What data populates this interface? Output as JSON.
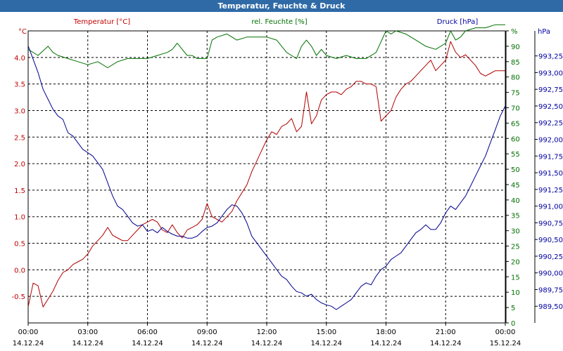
{
  "chart_data": {
    "type": "line",
    "title": "Temperatur, Feuchte & Druck",
    "x_ticks": [
      "00:00",
      "03:00",
      "06:00",
      "09:00",
      "12:00",
      "15:00",
      "18:00",
      "21:00",
      "00:00"
    ],
    "x_dates": [
      "14.12.24",
      "14.12.24",
      "14.12.24",
      "14.12.24",
      "14.12.24",
      "14.12.24",
      "14.12.24",
      "14.12.24",
      "15.12.24"
    ],
    "xlim": [
      0,
      24
    ],
    "grid": true,
    "axes": {
      "temperature": {
        "label": "Temperatur [°C]",
        "unit": "°C",
        "ylim": [
          -1.0,
          4.5
        ],
        "ticks": [
          "4.0",
          "3.5",
          "3.0",
          "2.5",
          "2.0",
          "1.5",
          "1.0",
          "0.5",
          "0.0",
          "-0.5"
        ],
        "color": "#c00000"
      },
      "humidity": {
        "label": "rel. Feuchte [%]",
        "unit": "%",
        "ylim": [
          0,
          95
        ],
        "ticks": [
          "95",
          "90",
          "85",
          "80",
          "75",
          "70",
          "65",
          "60",
          "55",
          "50",
          "45",
          "40",
          "35",
          "30",
          "25",
          "20",
          "15",
          "10",
          "5",
          "0"
        ],
        "color": "#007000"
      },
      "pressure": {
        "label": "Druck [hPa]",
        "unit": "hPa",
        "ylim": [
          989.25,
          993.625
        ],
        "ticks": [
          "993,25",
          "993,00",
          "992,75",
          "992,50",
          "992,25",
          "992,00",
          "991,75",
          "991,50",
          "991,25",
          "991,00",
          "990,75",
          "990,50",
          "990,25",
          "990,00",
          "989,75",
          "989,50"
        ],
        "color": "#0000a0"
      }
    },
    "series": [
      {
        "name": "Temperatur [°C]",
        "axis": "temperature",
        "color": "#b00000",
        "x": [
          0,
          0.25,
          0.5,
          0.75,
          1.0,
          1.25,
          1.5,
          1.75,
          2.0,
          2.25,
          2.5,
          2.75,
          3.0,
          3.25,
          3.5,
          3.75,
          4.0,
          4.25,
          4.5,
          4.75,
          5.0,
          5.25,
          5.5,
          5.75,
          6.0,
          6.25,
          6.5,
          6.75,
          7.0,
          7.25,
          7.5,
          7.75,
          8.0,
          8.25,
          8.5,
          8.75,
          9.0,
          9.25,
          9.5,
          9.75,
          10.0,
          10.25,
          10.5,
          10.75,
          11.0,
          11.25,
          11.5,
          11.75,
          12.0,
          12.25,
          12.5,
          12.75,
          13.0,
          13.25,
          13.5,
          13.75,
          14.0,
          14.25,
          14.5,
          14.75,
          15.0,
          15.25,
          15.5,
          15.75,
          16.0,
          16.25,
          16.5,
          16.75,
          17.0,
          17.25,
          17.5,
          17.75,
          18.0,
          18.25,
          18.5,
          18.75,
          19.0,
          19.25,
          19.5,
          19.75,
          20.0,
          20.25,
          20.5,
          20.75,
          21.0,
          21.25,
          21.5,
          21.75,
          22.0,
          22.25,
          22.5,
          22.75,
          23.0,
          23.25,
          23.5,
          23.75,
          24.0
        ],
        "y": [
          -0.7,
          -0.25,
          -0.3,
          -0.7,
          -0.55,
          -0.4,
          -0.2,
          -0.05,
          0.0,
          0.1,
          0.15,
          0.2,
          0.3,
          0.45,
          0.55,
          0.65,
          0.8,
          0.65,
          0.6,
          0.55,
          0.55,
          0.65,
          0.75,
          0.85,
          0.9,
          0.95,
          0.9,
          0.75,
          0.7,
          0.85,
          0.7,
          0.6,
          0.75,
          0.8,
          0.85,
          0.95,
          1.25,
          1.0,
          0.95,
          0.9,
          1.0,
          1.1,
          1.3,
          1.45,
          1.6,
          1.85,
          2.05,
          2.25,
          2.45,
          2.6,
          2.55,
          2.7,
          2.75,
          2.85,
          2.6,
          2.7,
          3.35,
          2.75,
          2.9,
          3.2,
          3.3,
          3.35,
          3.35,
          3.3,
          3.4,
          3.45,
          3.55,
          3.55,
          3.5,
          3.5,
          3.45,
          2.8,
          2.9,
          3.0,
          3.25,
          3.4,
          3.5,
          3.55,
          3.65,
          3.75,
          3.85,
          3.95,
          3.75,
          3.85,
          3.95,
          4.3,
          4.1,
          4.0,
          4.05,
          3.95,
          3.85,
          3.7,
          3.65,
          3.7,
          3.75,
          3.75,
          3.75
        ]
      },
      {
        "name": "rel. Feuchte [%]",
        "axis": "humidity",
        "color": "#007000",
        "x": [
          0,
          0.5,
          1.0,
          1.25,
          1.5,
          2.0,
          2.5,
          3.0,
          3.5,
          4.0,
          4.5,
          5.0,
          5.5,
          6.0,
          6.5,
          7.0,
          7.25,
          7.5,
          7.75,
          8.0,
          8.25,
          8.5,
          9.0,
          9.25,
          9.5,
          10.0,
          10.5,
          11.0,
          11.5,
          12.0,
          12.5,
          13.0,
          13.25,
          13.5,
          13.75,
          14.0,
          14.25,
          14.5,
          14.75,
          15.0,
          15.5,
          16.0,
          16.5,
          17.0,
          17.5,
          18.0,
          18.25,
          18.5,
          19.0,
          19.5,
          20.0,
          20.5,
          21.0,
          21.25,
          21.5,
          21.75,
          22.0,
          22.5,
          23.0,
          23.5,
          24.0
        ],
        "y": [
          89,
          87,
          90,
          88,
          87,
          86,
          85,
          84,
          85,
          83,
          85,
          86,
          86,
          86,
          87,
          88,
          89,
          91,
          89,
          87,
          87,
          86,
          86,
          92,
          93,
          94,
          92,
          93,
          93,
          93,
          92,
          88,
          87,
          86,
          90,
          92,
          90,
          87,
          89,
          87,
          86,
          87,
          86,
          86,
          88,
          95,
          94,
          95,
          94,
          92,
          90,
          89,
          91,
          95,
          92,
          93,
          95,
          96,
          96,
          97,
          97
        ]
      },
      {
        "name": "Druck [hPa]",
        "axis": "pressure",
        "color": "#00008c",
        "x": [
          0,
          0.25,
          0.5,
          0.75,
          1.0,
          1.25,
          1.5,
          1.75,
          2.0,
          2.25,
          2.5,
          2.75,
          3.0,
          3.25,
          3.5,
          3.75,
          4.0,
          4.25,
          4.5,
          4.75,
          5.0,
          5.25,
          5.5,
          5.75,
          6.0,
          6.25,
          6.5,
          6.75,
          7.0,
          7.25,
          7.5,
          7.75,
          8.0,
          8.25,
          8.5,
          8.75,
          9.0,
          9.25,
          9.5,
          9.75,
          10.0,
          10.25,
          10.5,
          10.75,
          11.0,
          11.25,
          11.5,
          11.75,
          12.0,
          12.25,
          12.5,
          12.75,
          13.0,
          13.25,
          13.5,
          13.75,
          14.0,
          14.25,
          14.5,
          14.75,
          15.0,
          15.25,
          15.5,
          15.75,
          16.0,
          16.25,
          16.5,
          16.75,
          17.0,
          17.25,
          17.5,
          17.75,
          18.0,
          18.25,
          18.5,
          18.75,
          19.0,
          19.25,
          19.5,
          19.75,
          20.0,
          20.25,
          20.5,
          20.75,
          21.0,
          21.25,
          21.5,
          21.75,
          22.0,
          22.25,
          22.5,
          22.75,
          23.0,
          23.25,
          23.5,
          23.75,
          24.0
        ],
        "y": [
          993.4,
          993.2,
          993.0,
          992.75,
          992.6,
          992.45,
          992.35,
          992.3,
          992.1,
          992.05,
          991.95,
          991.85,
          991.8,
          991.75,
          991.65,
          991.55,
          991.35,
          991.15,
          991.0,
          990.95,
          990.85,
          990.75,
          990.7,
          990.72,
          990.62,
          990.65,
          990.6,
          990.68,
          990.62,
          990.58,
          990.55,
          990.55,
          990.52,
          990.52,
          990.55,
          990.62,
          990.68,
          990.7,
          990.75,
          990.85,
          990.95,
          991.02,
          991.0,
          990.9,
          990.75,
          990.55,
          990.45,
          990.35,
          990.25,
          990.15,
          990.05,
          989.95,
          989.9,
          989.8,
          989.72,
          989.7,
          989.65,
          989.68,
          989.6,
          989.55,
          989.52,
          989.5,
          989.45,
          989.5,
          989.55,
          989.6,
          989.7,
          989.8,
          989.85,
          989.82,
          989.95,
          990.05,
          990.1,
          990.2,
          990.25,
          990.3,
          990.4,
          990.5,
          990.6,
          990.65,
          990.72,
          990.65,
          990.65,
          990.75,
          990.9,
          991.0,
          990.95,
          991.05,
          991.15,
          991.3,
          991.45,
          991.6,
          991.75,
          991.95,
          992.15,
          992.35,
          992.5
        ]
      }
    ]
  }
}
